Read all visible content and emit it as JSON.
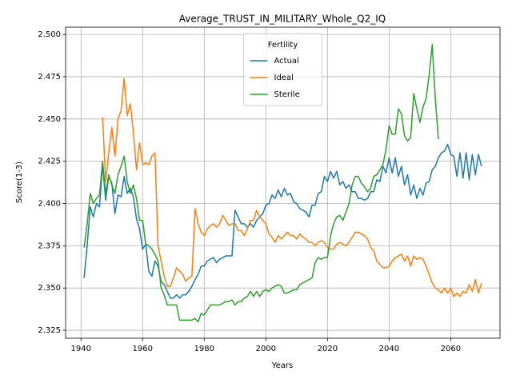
{
  "chart_data": {
    "type": "line",
    "title": "Average_TRUST_IN_MILITARY_Whole_Q2_IQ",
    "xlabel": "Years",
    "ylabel": "Score(1-3)",
    "legend_title": "Fertility",
    "legend": "upper center",
    "grid": true,
    "xlim": [
      1935,
      2076
    ],
    "xticks": [
      1940,
      1960,
      1980,
      2000,
      2020,
      2040,
      2060
    ],
    "ylim": [
      2.3203,
      2.5043
    ],
    "yticks": [
      2.325,
      {
        "value": 2.35,
        "label": "2.350"
      },
      2.375,
      {
        "value": 2.4,
        "label": "2.400"
      },
      2.425,
      {
        "value": 2.45,
        "label": "2.450"
      },
      2.475,
      {
        "value": 2.5,
        "label": "2.500"
      }
    ],
    "x": [
      1941,
      1942,
      1943,
      1944,
      1945,
      1946,
      1947,
      1948,
      1949,
      1950,
      1951,
      1952,
      1953,
      1954,
      1955,
      1956,
      1957,
      1958,
      1959,
      1960,
      1961,
      1962,
      1963,
      1964,
      1965,
      1966,
      1967,
      1968,
      1969,
      1970,
      1971,
      1972,
      1973,
      1974,
      1975,
      1976,
      1977,
      1978,
      1979,
      1980,
      1981,
      1982,
      1983,
      1984,
      1985,
      1986,
      1987,
      1988,
      1989,
      1990,
      1991,
      1992,
      1993,
      1994,
      1995,
      1996,
      1997,
      1998,
      1999,
      2000,
      2001,
      2002,
      2003,
      2004,
      2005,
      2006,
      2007,
      2008,
      2009,
      2010,
      2011,
      2012,
      2013,
      2014,
      2015,
      2016,
      2017,
      2018,
      2019,
      2020,
      2021,
      2022,
      2023,
      2024,
      2025,
      2026,
      2027,
      2028,
      2029,
      2030,
      2031,
      2032,
      2033,
      2034,
      2035,
      2036,
      2037,
      2038,
      2039,
      2040,
      2041,
      2042,
      2043,
      2044,
      2045,
      2046,
      2047,
      2048,
      2049,
      2050,
      2051,
      2052,
      2053,
      2054,
      2055,
      2056,
      2057,
      2058,
      2059,
      2060,
      2061,
      2062,
      2063,
      2064,
      2065,
      2066,
      2067,
      2068,
      2069,
      2070
    ],
    "series": [
      {
        "name": "Actual",
        "color": "#1f77b4",
        "values": [
          2.356,
          2.375,
          2.398,
          2.392,
          2.4,
          2.398,
          2.423,
          2.402,
          2.416,
          2.412,
          2.394,
          2.405,
          2.404,
          2.416,
          2.406,
          2.409,
          2.404,
          2.391,
          2.385,
          2.373,
          2.376,
          2.36,
          2.357,
          2.366,
          2.363,
          2.354,
          2.352,
          2.348,
          2.344,
          2.344,
          2.346,
          2.344,
          2.346,
          2.346,
          2.348,
          2.351,
          2.355,
          2.358,
          2.363,
          2.363,
          2.366,
          2.367,
          2.368,
          2.365,
          2.367,
          2.368,
          2.369,
          2.369,
          2.369,
          2.396,
          2.392,
          2.388,
          2.388,
          2.386,
          2.388,
          2.386,
          2.39,
          2.392,
          2.394,
          2.399,
          2.4,
          2.405,
          2.403,
          2.408,
          2.404,
          2.409,
          2.405,
          2.406,
          2.401,
          2.4,
          2.397,
          2.396,
          2.395,
          2.392,
          2.399,
          2.399,
          2.406,
          2.407,
          2.416,
          2.413,
          2.419,
          2.415,
          2.419,
          2.411,
          2.413,
          2.409,
          2.411,
          2.407,
          2.407,
          2.403,
          2.403,
          2.402,
          2.403,
          2.407,
          2.407,
          2.414,
          2.413,
          2.422,
          2.418,
          2.427,
          2.418,
          2.427,
          2.416,
          2.422,
          2.411,
          2.417,
          2.405,
          2.411,
          2.403,
          2.409,
          2.405,
          2.412,
          2.413,
          2.42,
          2.422,
          2.427,
          2.43,
          2.431,
          2.435,
          2.429,
          2.428,
          2.416,
          2.43,
          2.415,
          2.43,
          2.414,
          2.429,
          2.417,
          2.429,
          2.422
        ]
      },
      {
        "name": "Ideal",
        "color": "#ff7f0e",
        "values": [
          null,
          null,
          null,
          null,
          null,
          null,
          2.451,
          2.413,
          2.43,
          2.445,
          2.428,
          2.45,
          2.455,
          2.474,
          2.452,
          2.459,
          2.442,
          2.42,
          2.436,
          2.423,
          2.424,
          2.423,
          2.428,
          2.43,
          2.375,
          2.366,
          2.357,
          2.351,
          2.351,
          2.356,
          2.362,
          2.36,
          2.358,
          2.354,
          2.356,
          2.357,
          2.397,
          2.388,
          2.383,
          2.381,
          2.385,
          2.387,
          2.388,
          2.386,
          2.388,
          2.393,
          2.39,
          2.387,
          2.388,
          2.388,
          2.384,
          2.384,
          2.381,
          2.385,
          2.39,
          2.39,
          2.396,
          2.392,
          2.39,
          2.388,
          2.382,
          2.38,
          2.377,
          2.381,
          2.379,
          2.381,
          2.383,
          2.381,
          2.381,
          2.379,
          2.382,
          2.38,
          2.379,
          2.377,
          2.377,
          2.375,
          2.377,
          2.378,
          2.377,
          2.374,
          2.373,
          2.373,
          2.376,
          2.377,
          2.376,
          2.375,
          2.377,
          2.38,
          2.383,
          2.383,
          2.382,
          2.381,
          2.379,
          2.374,
          2.372,
          2.366,
          2.364,
          2.362,
          2.362,
          2.363,
          2.366,
          2.368,
          2.369,
          2.37,
          2.366,
          2.369,
          2.363,
          2.369,
          2.367,
          2.368,
          2.367,
          2.363,
          2.358,
          2.353,
          2.35,
          2.349,
          2.347,
          2.35,
          2.347,
          2.35,
          2.345,
          2.347,
          2.345,
          2.348,
          2.347,
          2.352,
          2.348,
          2.355,
          2.347,
          2.353
        ]
      },
      {
        "name": "Sterile",
        "color": "#2ca02c",
        "values": [
          2.374,
          2.388,
          2.406,
          2.4,
          2.403,
          2.405,
          2.425,
          2.406,
          2.417,
          2.411,
          2.406,
          2.417,
          2.422,
          2.428,
          2.413,
          2.406,
          2.411,
          2.403,
          2.39,
          2.39,
          2.376,
          2.375,
          2.373,
          2.37,
          2.366,
          2.35,
          2.346,
          2.34,
          2.34,
          2.34,
          2.34,
          2.331,
          2.331,
          2.331,
          2.331,
          2.331,
          2.332,
          2.33,
          2.335,
          2.334,
          2.337,
          2.34,
          2.34,
          2.34,
          2.34,
          2.341,
          2.342,
          2.342,
          2.343,
          2.34,
          2.342,
          2.342,
          2.344,
          2.345,
          2.348,
          2.345,
          2.348,
          2.345,
          2.348,
          2.349,
          2.348,
          2.35,
          2.351,
          2.352,
          2.351,
          2.347,
          2.347,
          2.348,
          2.349,
          2.349,
          2.352,
          2.353,
          2.354,
          2.355,
          2.356,
          2.365,
          2.368,
          2.367,
          2.368,
          2.368,
          2.381,
          2.388,
          2.392,
          2.393,
          2.39,
          2.395,
          2.4,
          2.411,
          2.416,
          2.416,
          2.412,
          2.41,
          2.407,
          2.409,
          2.416,
          2.417,
          2.42,
          2.423,
          2.432,
          2.446,
          2.441,
          2.441,
          2.456,
          2.453,
          2.44,
          2.437,
          2.439,
          2.465,
          2.456,
          2.448,
          2.457,
          2.462,
          2.476,
          2.494,
          2.462,
          2.438,
          null,
          null,
          null,
          null,
          null,
          null,
          null,
          null,
          null,
          null,
          null,
          null,
          null,
          null
        ]
      }
    ]
  }
}
